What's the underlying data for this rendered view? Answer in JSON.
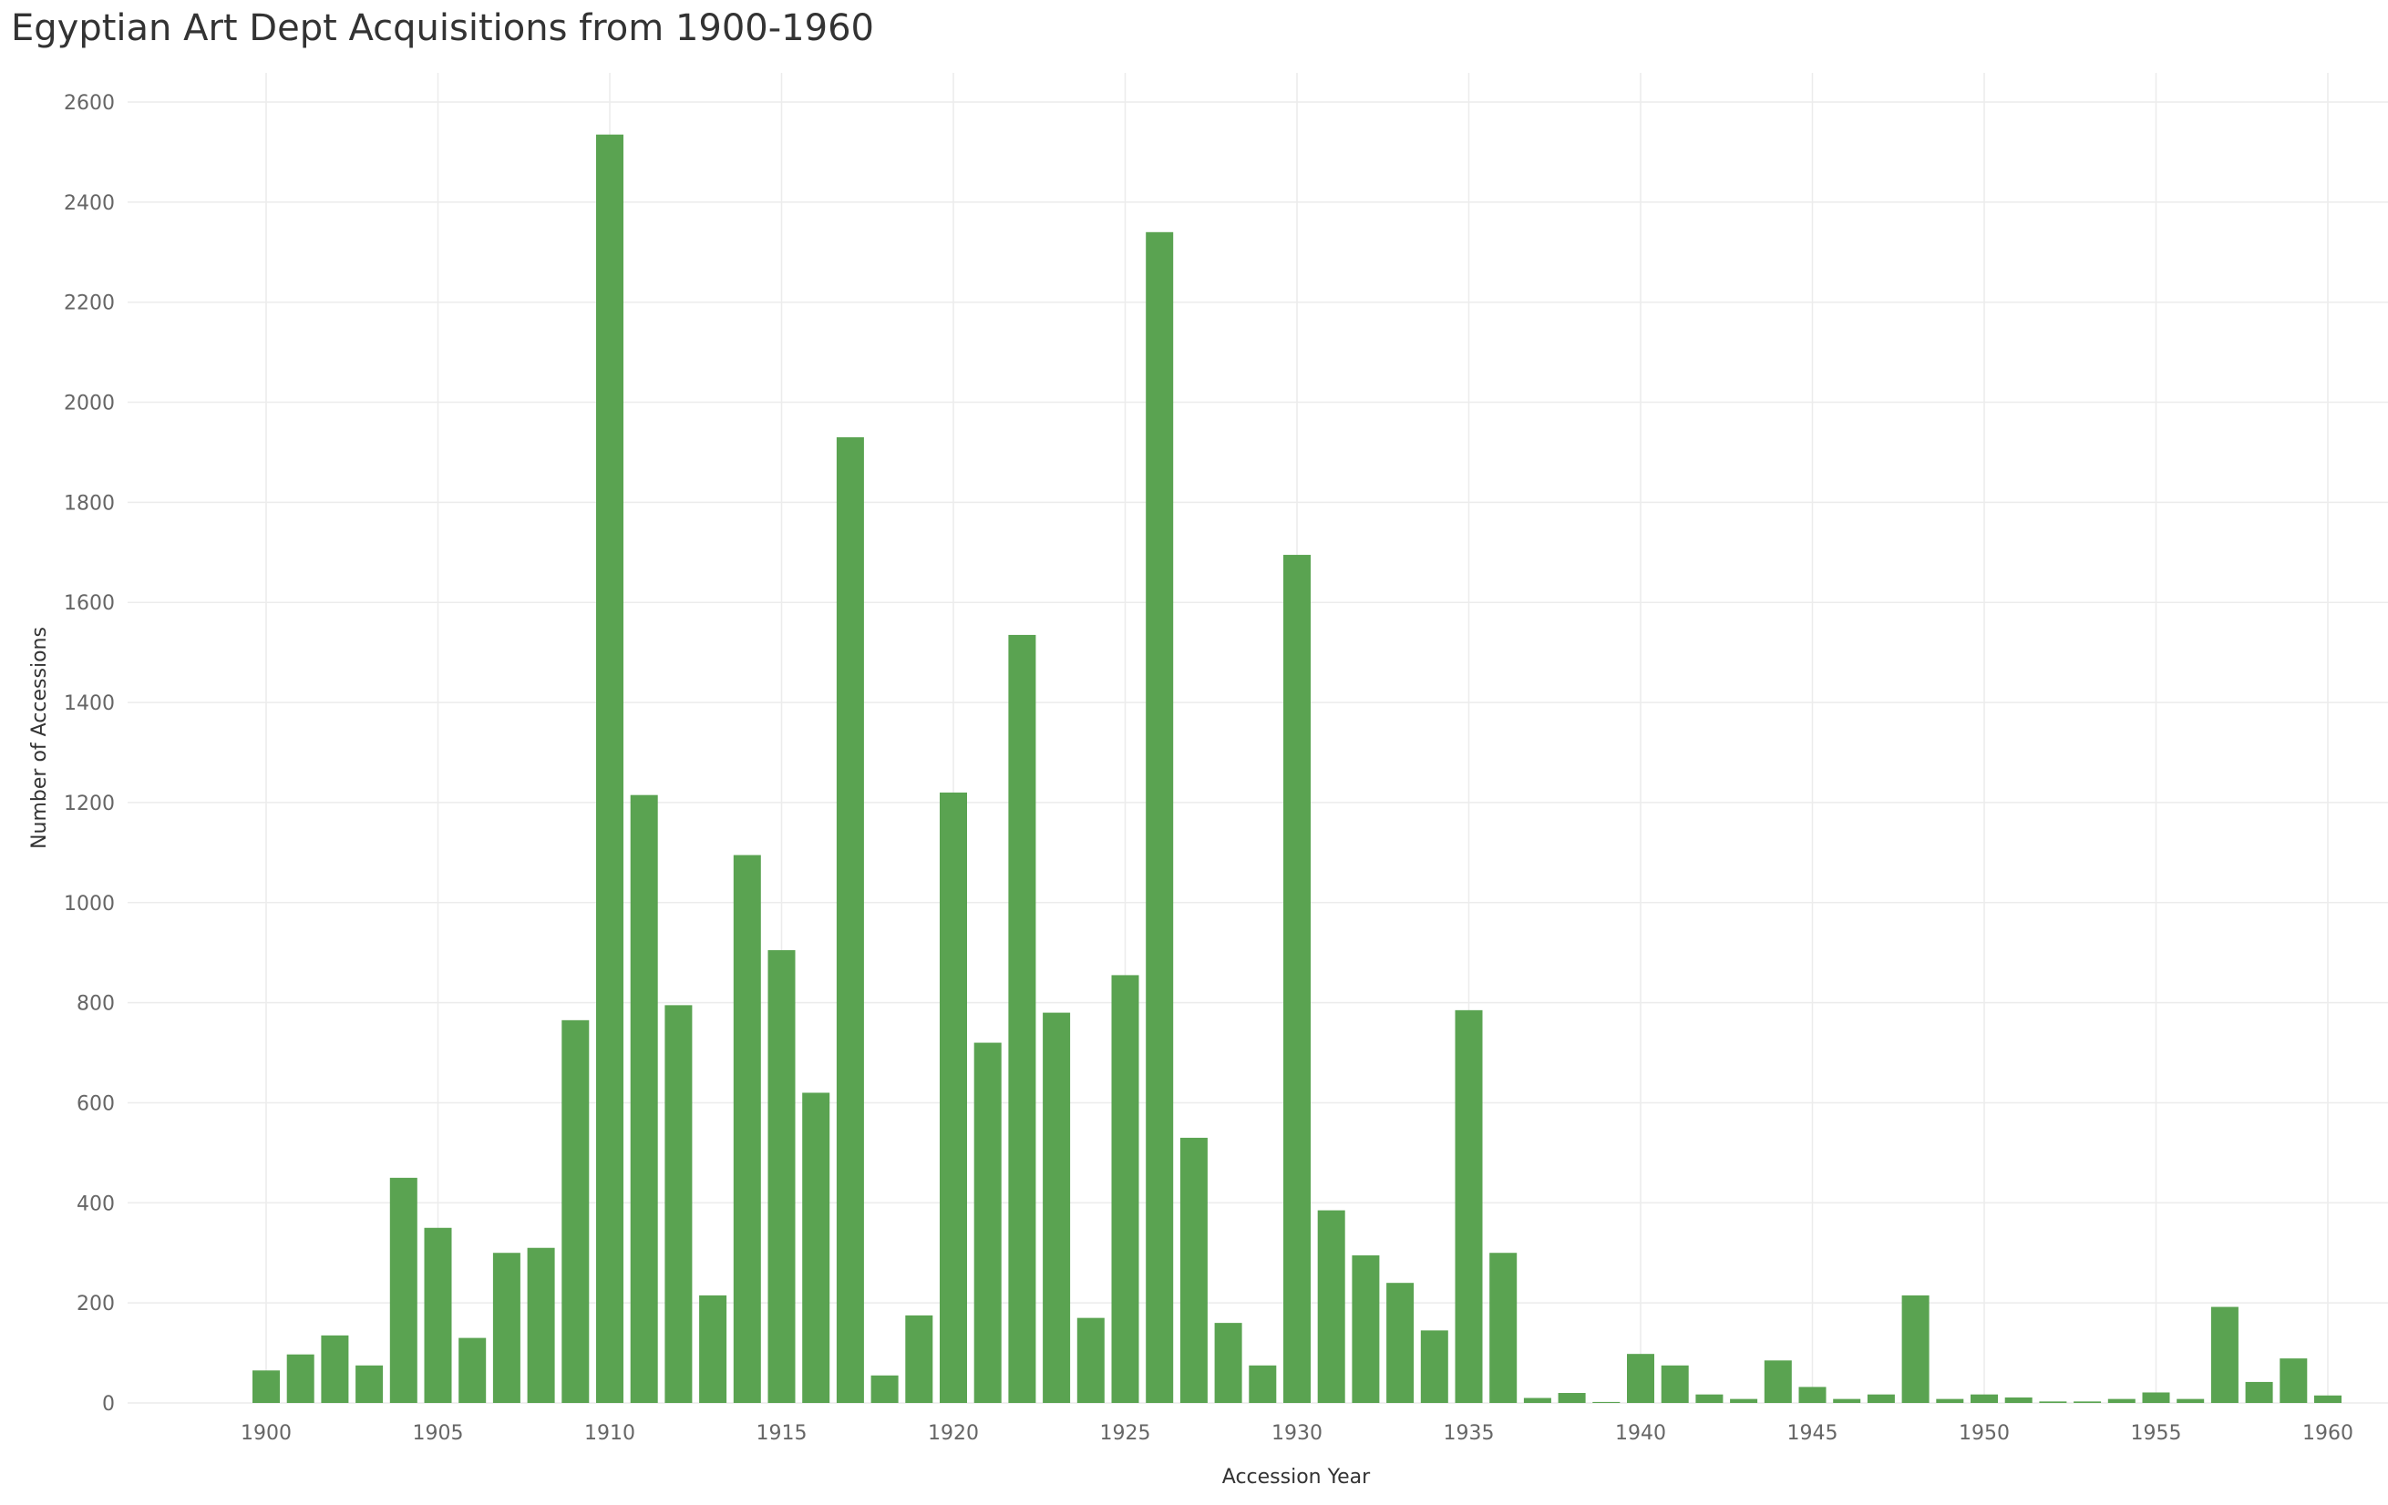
{
  "chart_data": {
    "type": "bar",
    "title": "Egyptian Art Dept Acquisitions from 1900-1960",
    "xlabel": "Accession Year",
    "ylabel": "Number of Accessions",
    "ylim": [
      0,
      2600
    ],
    "xlim": [
      1899,
      1961
    ],
    "y_ticks": [
      0,
      200,
      400,
      600,
      800,
      1000,
      1200,
      1400,
      1600,
      1800,
      2000,
      2200,
      2400,
      2600
    ],
    "x_ticks": [
      1900,
      1905,
      1910,
      1915,
      1920,
      1925,
      1930,
      1935,
      1940,
      1945,
      1950,
      1955,
      1960
    ],
    "grid": true,
    "bar_color": "#5aa351",
    "categories": [
      1900,
      1901,
      1902,
      1903,
      1904,
      1905,
      1906,
      1907,
      1908,
      1909,
      1910,
      1911,
      1912,
      1913,
      1914,
      1915,
      1916,
      1917,
      1918,
      1919,
      1920,
      1921,
      1922,
      1923,
      1924,
      1925,
      1926,
      1927,
      1928,
      1929,
      1930,
      1931,
      1932,
      1933,
      1934,
      1935,
      1936,
      1937,
      1938,
      1939,
      1940,
      1941,
      1942,
      1943,
      1944,
      1945,
      1946,
      1947,
      1948,
      1949,
      1950,
      1951,
      1952,
      1953,
      1954,
      1955,
      1956,
      1957,
      1958,
      1959,
      1960
    ],
    "values": [
      65,
      97,
      135,
      75,
      450,
      350,
      130,
      300,
      310,
      765,
      2535,
      1215,
      795,
      215,
      1095,
      905,
      620,
      1930,
      55,
      175,
      1220,
      720,
      1535,
      780,
      170,
      855,
      2340,
      530,
      160,
      75,
      1695,
      385,
      295,
      240,
      145,
      785,
      300,
      10,
      20,
      2,
      98,
      75,
      17,
      8,
      85,
      32,
      8,
      17,
      215,
      8,
      17,
      11,
      3,
      3,
      8,
      21,
      8,
      192,
      42,
      89,
      15
    ]
  }
}
